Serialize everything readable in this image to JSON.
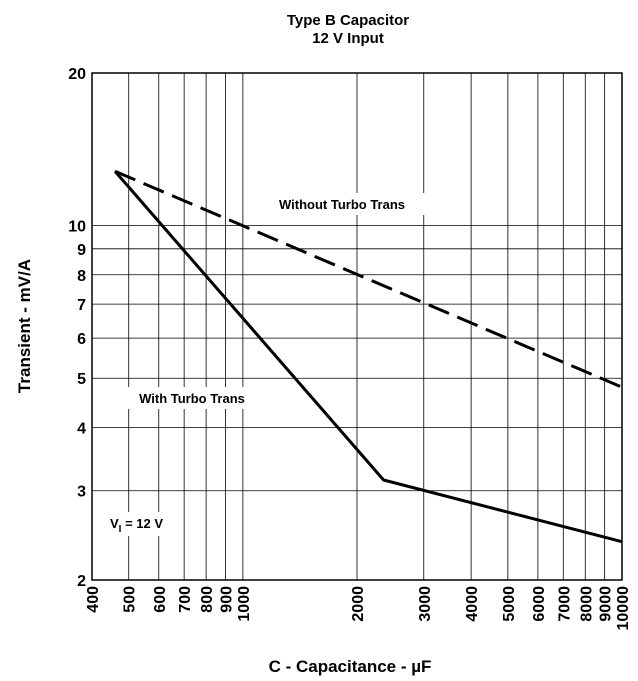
{
  "chart_data": {
    "type": "line",
    "title": "Type B Capacitor",
    "subtitle": "12 V Input",
    "xlabel_prefix": "C - Capacitance - ",
    "xlabel_unit": "µF",
    "ylabel": "Transient - mV/A",
    "x_scale": "log",
    "y_scale": "log",
    "xlim": [
      400,
      10000
    ],
    "ylim": [
      2,
      20
    ],
    "grid": true,
    "x_ticks": [
      400,
      500,
      600,
      700,
      800,
      900,
      1000,
      2000,
      3000,
      4000,
      5000,
      6000,
      7000,
      8000,
      9000,
      10000
    ],
    "x_tick_labels": [
      "400",
      "500",
      "600",
      "700",
      "800",
      "900",
      "1000",
      "2000",
      "3000",
      "4000",
      "5000",
      "6000",
      "7000",
      "8000",
      "9000",
      "10000"
    ],
    "y_ticks": [
      2,
      3,
      4,
      5,
      6,
      7,
      8,
      9,
      10,
      20
    ],
    "y_tick_labels": [
      "2",
      "3",
      "4",
      "5",
      "6",
      "7",
      "8",
      "9",
      "10",
      "20"
    ],
    "series": [
      {
        "name": "Without Turbo Trans",
        "style": "dashed",
        "x": [
          460,
          10000
        ],
        "y": [
          12.8,
          4.8
        ]
      },
      {
        "name": "With Turbo Trans",
        "style": "solid",
        "x": [
          460,
          2350,
          10000
        ],
        "y": [
          12.8,
          3.15,
          2.38
        ]
      }
    ],
    "annotations": [
      {
        "text_main": "V",
        "text_sub": "I",
        "text_rest": " = 12 V"
      }
    ],
    "colors": {
      "line": "#000000",
      "grid": "#000000",
      "background": "#ffffff"
    }
  }
}
